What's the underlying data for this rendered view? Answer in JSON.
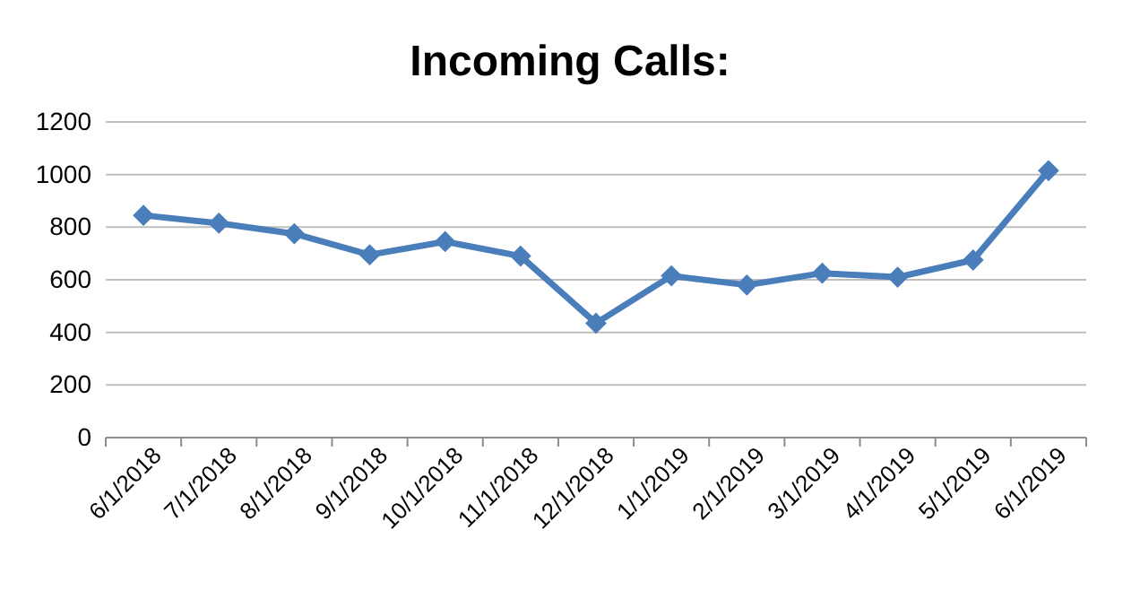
{
  "chart_data": {
    "type": "line",
    "title": "Incoming Calls:",
    "categories": [
      "6/1/2018",
      "7/1/2018",
      "8/1/2018",
      "9/1/2018",
      "10/1/2018",
      "11/1/2018",
      "12/1/2018",
      "1/1/2019",
      "2/1/2019",
      "3/1/2019",
      "4/1/2019",
      "5/1/2019",
      "6/1/2019"
    ],
    "series": [
      {
        "color": "#4a7ebb",
        "values": [
          845,
          815,
          775,
          695,
          745,
          690,
          435,
          615,
          580,
          625,
          610,
          675,
          1015
        ]
      }
    ],
    "ylim": [
      0,
      1200
    ],
    "yticks": [
      0,
      200,
      400,
      600,
      800,
      1000,
      1200
    ],
    "grid": "y",
    "marker": "diamond"
  }
}
